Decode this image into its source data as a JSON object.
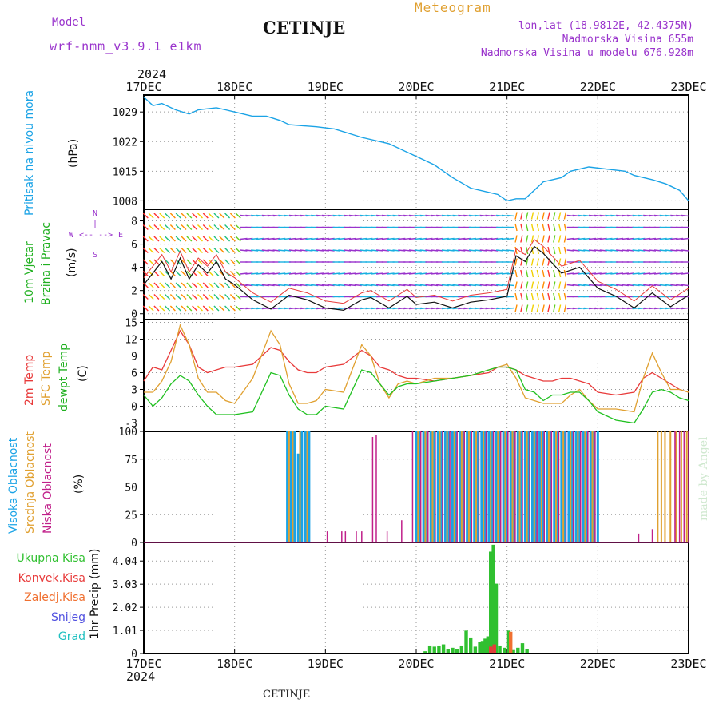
{
  "header": {
    "model_label": "Model",
    "model_name": "wrf-nmm_v3.9.1 e1km",
    "station": "CETINJE",
    "product": "Meteogram",
    "lonlat": "lon,lat (18.9812E, 42.4375N)",
    "elevation": "Nadmorska Visina 655m",
    "model_elevation": "Nadmorska Visina u modelu 676.928m",
    "footer": "CETINJE",
    "watermark": "made by Angel",
    "year": "2024"
  },
  "colors": {
    "pressure": "#1aa3e6",
    "temp2m": "#e83a3a",
    "sfc": "#e0a030",
    "dewpt": "#20c020",
    "high_cloud": "#1aa3e6",
    "mid_cloud": "#e0a030",
    "low_cloud": "#c0208a",
    "purple": "#9933cc",
    "precip": "#30c030",
    "snow": "#5050e0",
    "grad": "#20c0c0",
    "konv": "#e83a3a",
    "zaledj": "#f07030"
  },
  "x_axis": {
    "labels": [
      "17DEC",
      "18DEC",
      "19DEC",
      "20DEC",
      "21DEC",
      "22DEC",
      "23DEC"
    ],
    "range_days": [
      0,
      6
    ]
  },
  "panels": {
    "pressure": {
      "label": "Pritisak na nivou mora",
      "unit": "(hPa)"
    },
    "wind": {
      "label1": "10m Vjetar",
      "label2": "Brzina i Pravac",
      "unit": "(m/s)",
      "compass": [
        "W",
        "E",
        "N",
        "S"
      ]
    },
    "temp": {
      "label1": "2m Temp",
      "label2": "SFC Temp",
      "label3": "dewpt Temp",
      "unit": "(C)"
    },
    "cloud": {
      "label1": "Visoka Oblacnost",
      "label2": "Srednja Oblacnost",
      "label3": "Niska Oblacnost",
      "unit": "(%)"
    },
    "precip": {
      "unit": "1hr Precip (mm)",
      "legend": [
        "Ukupna Kisa",
        "Konvek.Kisa",
        "Zaledj.Kisa",
        "Snijeg",
        "Grad"
      ]
    }
  },
  "chart_data": [
    {
      "type": "line",
      "name": "pressure",
      "ylabel": "(hPa)",
      "yticks": [
        1008,
        1015,
        1022,
        1029
      ],
      "ylim": [
        1006,
        1033
      ],
      "x_days": [
        0,
        0.1,
        0.2,
        0.35,
        0.5,
        0.6,
        0.8,
        0.9,
        1.0,
        1.2,
        1.35,
        1.5,
        1.6,
        1.9,
        2.1,
        2.4,
        2.7,
        2.9,
        3.0,
        3.2,
        3.4,
        3.6,
        3.8,
        3.9,
        4.0,
        4.1,
        4.2,
        4.3,
        4.4,
        4.6,
        4.7,
        4.9,
        5.1,
        5.3,
        5.4,
        5.6,
        5.75,
        5.9,
        6.0
      ],
      "values": [
        1032.5,
        1030.5,
        1031,
        1029.5,
        1028.5,
        1029.5,
        1030,
        1029.5,
        1029,
        1028,
        1028,
        1027,
        1026,
        1025.5,
        1025,
        1023,
        1021.5,
        1019.5,
        1018.5,
        1016.5,
        1013.5,
        1011,
        1010,
        1009.5,
        1008,
        1008.5,
        1008.5,
        1010.5,
        1012.5,
        1013.5,
        1015,
        1016,
        1015.5,
        1015,
        1014,
        1013,
        1012,
        1010.5,
        1008
      ]
    },
    {
      "type": "line",
      "name": "wind_speed",
      "ylabel": "(m/s)",
      "yticks": [
        0,
        2,
        4,
        6,
        8
      ],
      "ylim": [
        -0.5,
        9
      ],
      "x_days": [
        0,
        0.1,
        0.2,
        0.3,
        0.4,
        0.5,
        0.6,
        0.7,
        0.8,
        0.9,
        1.0,
        1.2,
        1.4,
        1.6,
        1.8,
        2.0,
        2.2,
        2.4,
        2.5,
        2.7,
        2.9,
        3.0,
        3.2,
        3.4,
        3.6,
        3.8,
        4.0,
        4.1,
        4.2,
        4.3,
        4.4,
        4.6,
        4.8,
        5.0,
        5.2,
        5.4,
        5.6,
        5.8,
        6.0
      ],
      "values": [
        2.5,
        3.5,
        4.5,
        3.0,
        4.8,
        3.0,
        4.2,
        3.5,
        4.5,
        3.0,
        2.5,
        1.2,
        0.4,
        1.6,
        1.2,
        0.5,
        0.3,
        1.2,
        1.4,
        0.5,
        1.5,
        0.8,
        1.0,
        0.5,
        1.0,
        1.2,
        1.5,
        5.0,
        4.5,
        5.8,
        5.2,
        3.5,
        4.0,
        2.2,
        1.5,
        0.5,
        1.8,
        0.6,
        1.6
      ]
    },
    {
      "type": "line",
      "name": "temperature",
      "ylabel": "(C)",
      "yticks": [
        -3,
        0,
        3,
        6,
        9,
        12,
        15
      ],
      "ylim": [
        -4.5,
        15.5
      ],
      "x_days": [
        0,
        0.1,
        0.2,
        0.3,
        0.4,
        0.5,
        0.6,
        0.7,
        0.8,
        0.9,
        1.0,
        1.2,
        1.4,
        1.5,
        1.6,
        1.7,
        1.8,
        1.9,
        2.0,
        2.2,
        2.4,
        2.5,
        2.6,
        2.7,
        2.8,
        2.9,
        3.0,
        3.2,
        3.4,
        3.6,
        3.8,
        3.9,
        4.0,
        4.1,
        4.2,
        4.3,
        4.4,
        4.5,
        4.6,
        4.7,
        4.8,
        4.9,
        5.0,
        5.2,
        5.4,
        5.5,
        5.6,
        5.7,
        5.8,
        5.9,
        6.0
      ],
      "series": [
        {
          "name": "2m Temp",
          "values": [
            4.5,
            7,
            6.5,
            10,
            13.5,
            11,
            7,
            6,
            6.5,
            7,
            7,
            7.5,
            10.5,
            10,
            8,
            6.5,
            6,
            6,
            7,
            7.5,
            10,
            9,
            7,
            6.5,
            5.5,
            5,
            5,
            4.5,
            5,
            5.5,
            6,
            7,
            7,
            6.5,
            5.5,
            5,
            4.5,
            4.5,
            5,
            5,
            4.5,
            4,
            2.5,
            2,
            2.5,
            5,
            6,
            5,
            4,
            3,
            2.5
          ]
        },
        {
          "name": "SFC Temp",
          "values": [
            2.5,
            2.5,
            4.5,
            8,
            14.5,
            11,
            5,
            2.5,
            2.5,
            1,
            0.5,
            5,
            13.5,
            11,
            4,
            0.5,
            0.5,
            1,
            3,
            2.5,
            11,
            9,
            4,
            1.5,
            4,
            4.5,
            4,
            5,
            5,
            5.5,
            6.5,
            7,
            7.5,
            5,
            1.5,
            1,
            0.5,
            0.5,
            0.5,
            2,
            3,
            1,
            -0.5,
            -0.5,
            -1,
            5,
            9.5,
            6,
            3,
            3,
            2.5
          ]
        },
        {
          "name": "dewpt Temp",
          "values": [
            2,
            0,
            1.5,
            4,
            5.5,
            4.5,
            2,
            0,
            -1.5,
            -1.5,
            -1.5,
            -1,
            6,
            5.5,
            2,
            -0.5,
            -1.5,
            -1.5,
            0,
            -0.5,
            6.5,
            6,
            4,
            2,
            3.5,
            4,
            4,
            4.5,
            5,
            5.5,
            6.5,
            7,
            7,
            6.5,
            3,
            2.5,
            1,
            2,
            2,
            2.5,
            2.5,
            1,
            -1,
            -2.5,
            -3,
            -0.5,
            2.5,
            3,
            2.5,
            1.5,
            1
          ]
        }
      ]
    },
    {
      "type": "bar",
      "name": "cloud_cover",
      "ylabel": "(%)",
      "yticks": [
        0,
        25,
        50,
        75,
        100
      ],
      "ylim": [
        0,
        100
      ],
      "series": [
        {
          "name": "Visoka Oblacnost",
          "x_days": [
            1.58,
            1.62,
            1.66,
            1.7,
            1.74,
            1.78,
            1.82,
            3.0,
            3.04,
            3.08,
            3.12,
            3.16,
            3.2,
            3.24,
            3.28,
            3.32,
            3.36,
            3.4,
            3.44,
            3.48,
            3.52,
            3.56,
            3.6,
            3.64,
            3.68,
            3.72,
            3.76,
            3.8,
            3.84,
            3.88,
            3.92,
            3.96,
            4.0,
            4.04,
            4.08,
            4.12,
            4.16,
            4.2,
            4.24,
            4.28,
            4.32,
            4.36,
            4.4,
            4.44,
            4.48,
            4.52,
            4.56,
            4.6,
            4.64,
            4.68,
            4.72,
            4.76,
            4.8,
            4.84,
            4.88,
            4.92,
            4.96,
            5.0
          ],
          "values": [
            100,
            100,
            100,
            80,
            100,
            100,
            100,
            100,
            100,
            100,
            100,
            100,
            100,
            100,
            100,
            100,
            100,
            100,
            100,
            100,
            100,
            100,
            100,
            100,
            100,
            100,
            100,
            100,
            100,
            100,
            100,
            100,
            100,
            100,
            100,
            100,
            100,
            100,
            100,
            100,
            100,
            100,
            100,
            100,
            100,
            100,
            100,
            100,
            100,
            100,
            100,
            100,
            100,
            100,
            100,
            100,
            100,
            100
          ]
        },
        {
          "name": "Srednja Oblacnost",
          "x_days": [
            1.6,
            1.64,
            1.72,
            1.8,
            3.02,
            3.1,
            3.18,
            3.26,
            3.34,
            3.42,
            3.5,
            3.58,
            3.66,
            3.74,
            3.82,
            3.9,
            3.98,
            4.06,
            4.14,
            4.22,
            4.3,
            4.38,
            4.46,
            4.54,
            4.62,
            4.7,
            4.78,
            4.86,
            4.94,
            5.66,
            5.7,
            5.74,
            5.8,
            5.86,
            5.92,
            5.98
          ],
          "values": [
            100,
            100,
            100,
            100,
            100,
            100,
            100,
            100,
            100,
            100,
            100,
            100,
            100,
            100,
            100,
            100,
            100,
            100,
            100,
            100,
            100,
            100,
            100,
            100,
            100,
            100,
            100,
            100,
            100,
            100,
            100,
            100,
            100,
            100,
            100,
            100
          ]
        },
        {
          "name": "Niska Oblacnost",
          "x_days": [
            2.02,
            2.18,
            2.22,
            2.34,
            2.4,
            2.52,
            2.56,
            2.68,
            2.84,
            2.96,
            3.05,
            3.13,
            3.21,
            3.29,
            3.37,
            3.45,
            3.53,
            3.61,
            3.69,
            3.77,
            3.85,
            3.93,
            4.01,
            4.09,
            4.17,
            4.25,
            4.33,
            4.41,
            4.49,
            4.57,
            4.65,
            4.73,
            4.81,
            4.89,
            4.97,
            5.45,
            5.6,
            5.85,
            5.9,
            5.95,
            6.0
          ],
          "values": [
            10,
            10,
            10,
            10,
            10,
            95,
            97,
            10,
            20,
            100,
            100,
            100,
            100,
            100,
            100,
            100,
            100,
            100,
            100,
            100,
            100,
            100,
            100,
            100,
            100,
            100,
            100,
            100,
            100,
            100,
            100,
            100,
            100,
            100,
            100,
            8,
            12,
            100,
            100,
            100,
            100
          ]
        }
      ]
    },
    {
      "type": "bar",
      "name": "precipitation",
      "ylabel": "1hr Precip (mm)",
      "yticks": [
        0,
        1.01,
        2.02,
        3.03,
        4.04
      ],
      "ylim": [
        0,
        4.85
      ],
      "series": [
        {
          "name": "Ukupna Kisa",
          "x_days": [
            3.1,
            3.15,
            3.2,
            3.25,
            3.3,
            3.35,
            3.4,
            3.45,
            3.5,
            3.55,
            3.6,
            3.65,
            3.7,
            3.73,
            3.76,
            3.79,
            3.82,
            3.85,
            3.88,
            3.92,
            3.97,
            4.02,
            4.07,
            4.12,
            4.17,
            4.22
          ],
          "values": [
            0.1,
            0.35,
            0.3,
            0.35,
            0.4,
            0.2,
            0.25,
            0.2,
            0.35,
            1.0,
            0.7,
            0.3,
            0.5,
            0.55,
            0.65,
            0.75,
            4.45,
            4.75,
            3.05,
            0.35,
            0.25,
            1.0,
            0.15,
            0.25,
            0.45,
            0.2
          ]
        },
        {
          "name": "Konvek.Kisa",
          "x_days": [
            3.82,
            3.86
          ],
          "values": [
            0.3,
            0.4
          ]
        },
        {
          "name": "Zaledj.Kisa",
          "x_days": [
            4.04
          ],
          "values": [
            0.95
          ]
        }
      ]
    }
  ]
}
